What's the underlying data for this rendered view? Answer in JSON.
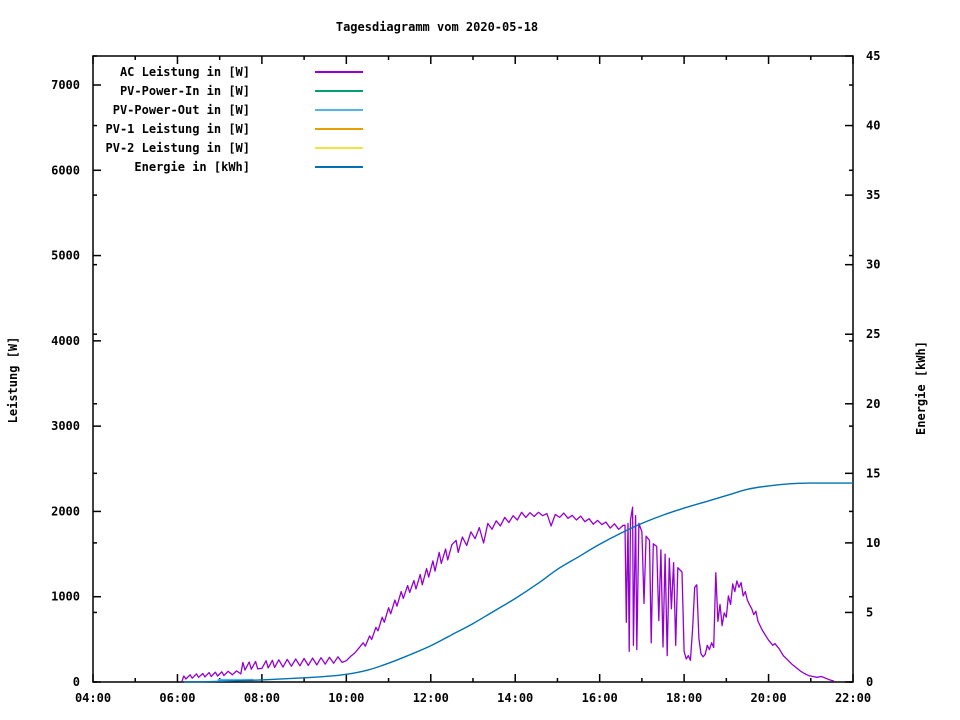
{
  "chart_data": {
    "type": "line",
    "title": "Tagesdiagramm vom 2020-05-18",
    "grid": false,
    "legend_position": "top-left-inside",
    "background_color": "#ffffff",
    "x_axis": {
      "label": "",
      "range_hours": [
        4,
        22
      ],
      "major_tick_every_hours": 2,
      "minor_tick_every_hours": 1,
      "tick_labels": [
        "04:00",
        "06:00",
        "08:00",
        "10:00",
        "12:00",
        "14:00",
        "16:00",
        "18:00",
        "20:00",
        "22:00"
      ]
    },
    "y_axis": {
      "label": "Leistung [W]",
      "range": [
        0,
        7340
      ],
      "ticks": [
        0,
        1000,
        2000,
        3000,
        4000,
        5000,
        6000,
        7000
      ],
      "tick_labels": [
        "0",
        "1000",
        "2000",
        "3000",
        "4000",
        "5000",
        "6000",
        "7000"
      ]
    },
    "y2_axis": {
      "label": "Energie [kWh]",
      "range": [
        0,
        45
      ],
      "ticks": [
        0,
        5,
        10,
        15,
        20,
        25,
        30,
        35,
        40,
        45
      ],
      "tick_labels": [
        "0",
        "5",
        "10",
        "15",
        "20",
        "25",
        "30",
        "35",
        "40",
        "45"
      ]
    },
    "series": [
      {
        "name": "AC Leistung in [W]",
        "color": "#9400d3",
        "axis": "y1",
        "smooth": false,
        "points": [
          [
            6.1,
            0
          ],
          [
            6.15,
            70
          ],
          [
            6.2,
            35
          ],
          [
            6.3,
            85
          ],
          [
            6.35,
            45
          ],
          [
            6.45,
            95
          ],
          [
            6.5,
            55
          ],
          [
            6.6,
            100
          ],
          [
            6.65,
            60
          ],
          [
            6.75,
            110
          ],
          [
            6.8,
            65
          ],
          [
            6.9,
            115
          ],
          [
            6.95,
            70
          ],
          [
            7.05,
            120
          ],
          [
            7.1,
            75
          ],
          [
            7.2,
            125
          ],
          [
            7.3,
            85
          ],
          [
            7.4,
            130
          ],
          [
            7.5,
            95
          ],
          [
            7.55,
            230
          ],
          [
            7.6,
            140
          ],
          [
            7.7,
            235
          ],
          [
            7.75,
            150
          ],
          [
            7.85,
            240
          ],
          [
            7.9,
            155
          ],
          [
            8.0,
            160
          ],
          [
            8.1,
            250
          ],
          [
            8.15,
            165
          ],
          [
            8.25,
            255
          ],
          [
            8.3,
            170
          ],
          [
            8.4,
            260
          ],
          [
            8.5,
            175
          ],
          [
            8.6,
            265
          ],
          [
            8.7,
            185
          ],
          [
            8.8,
            270
          ],
          [
            8.9,
            190
          ],
          [
            9.0,
            275
          ],
          [
            9.1,
            195
          ],
          [
            9.2,
            280
          ],
          [
            9.3,
            200
          ],
          [
            9.4,
            285
          ],
          [
            9.5,
            210
          ],
          [
            9.6,
            290
          ],
          [
            9.7,
            220
          ],
          [
            9.8,
            295
          ],
          [
            9.9,
            230
          ],
          [
            10.0,
            250
          ],
          [
            10.1,
            300
          ],
          [
            10.2,
            340
          ],
          [
            10.3,
            400
          ],
          [
            10.4,
            460
          ],
          [
            10.45,
            420
          ],
          [
            10.55,
            540
          ],
          [
            10.6,
            500
          ],
          [
            10.7,
            640
          ],
          [
            10.75,
            600
          ],
          [
            10.85,
            760
          ],
          [
            10.9,
            700
          ],
          [
            11.0,
            870
          ],
          [
            11.05,
            800
          ],
          [
            11.15,
            960
          ],
          [
            11.2,
            890
          ],
          [
            11.3,
            1060
          ],
          [
            11.35,
            980
          ],
          [
            11.45,
            1130
          ],
          [
            11.5,
            1050
          ],
          [
            11.6,
            1190
          ],
          [
            11.65,
            1090
          ],
          [
            11.75,
            1260
          ],
          [
            11.8,
            1140
          ],
          [
            11.9,
            1330
          ],
          [
            11.95,
            1230
          ],
          [
            12.05,
            1420
          ],
          [
            12.1,
            1300
          ],
          [
            12.2,
            1520
          ],
          [
            12.25,
            1390
          ],
          [
            12.35,
            1560
          ],
          [
            12.4,
            1430
          ],
          [
            12.5,
            1610
          ],
          [
            12.6,
            1660
          ],
          [
            12.65,
            1520
          ],
          [
            12.75,
            1700
          ],
          [
            12.85,
            1600
          ],
          [
            12.95,
            1760
          ],
          [
            13.05,
            1680
          ],
          [
            13.15,
            1810
          ],
          [
            13.25,
            1630
          ],
          [
            13.35,
            1860
          ],
          [
            13.45,
            1790
          ],
          [
            13.55,
            1890
          ],
          [
            13.65,
            1830
          ],
          [
            13.75,
            1930
          ],
          [
            13.85,
            1870
          ],
          [
            13.95,
            1950
          ],
          [
            14.05,
            1900
          ],
          [
            14.15,
            1990
          ],
          [
            14.25,
            1930
          ],
          [
            14.35,
            1985
          ],
          [
            14.45,
            1940
          ],
          [
            14.55,
            1990
          ],
          [
            14.65,
            1950
          ],
          [
            14.75,
            1975
          ],
          [
            14.85,
            1830
          ],
          [
            14.95,
            1965
          ],
          [
            15.05,
            1930
          ],
          [
            15.15,
            1980
          ],
          [
            15.25,
            1920
          ],
          [
            15.35,
            1955
          ],
          [
            15.45,
            1900
          ],
          [
            15.55,
            1945
          ],
          [
            15.65,
            1880
          ],
          [
            15.75,
            1915
          ],
          [
            15.85,
            1850
          ],
          [
            15.95,
            1895
          ],
          [
            16.05,
            1845
          ],
          [
            16.15,
            1875
          ],
          [
            16.25,
            1805
          ],
          [
            16.35,
            1855
          ],
          [
            16.45,
            1790
          ],
          [
            16.55,
            1835
          ],
          [
            16.6,
            1840
          ],
          [
            16.63,
            700
          ],
          [
            16.67,
            1860
          ],
          [
            16.7,
            360
          ],
          [
            16.73,
            1900
          ],
          [
            16.78,
            2050
          ],
          [
            16.8,
            430
          ],
          [
            16.85,
            1950
          ],
          [
            16.88,
            380
          ],
          [
            16.93,
            1860
          ],
          [
            17.0,
            1760
          ],
          [
            17.05,
            920
          ],
          [
            17.1,
            1710
          ],
          [
            17.18,
            1660
          ],
          [
            17.22,
            460
          ],
          [
            17.27,
            1620
          ],
          [
            17.35,
            1590
          ],
          [
            17.4,
            720
          ],
          [
            17.45,
            1550
          ],
          [
            17.5,
            410
          ],
          [
            17.55,
            1500
          ],
          [
            17.6,
            310
          ],
          [
            17.65,
            1450
          ],
          [
            17.7,
            860
          ],
          [
            17.75,
            1400
          ],
          [
            17.8,
            430
          ],
          [
            17.85,
            1340
          ],
          [
            17.95,
            1290
          ],
          [
            18.0,
            360
          ],
          [
            18.05,
            270
          ],
          [
            18.1,
            310
          ],
          [
            18.15,
            255
          ],
          [
            18.2,
            620
          ],
          [
            18.25,
            1110
          ],
          [
            18.3,
            1140
          ],
          [
            18.35,
            510
          ],
          [
            18.4,
            330
          ],
          [
            18.45,
            295
          ],
          [
            18.5,
            325
          ],
          [
            18.55,
            430
          ],
          [
            18.6,
            380
          ],
          [
            18.65,
            460
          ],
          [
            18.7,
            405
          ],
          [
            18.75,
            1280
          ],
          [
            18.8,
            710
          ],
          [
            18.85,
            910
          ],
          [
            18.9,
            660
          ],
          [
            18.95,
            810
          ],
          [
            19.0,
            760
          ],
          [
            19.05,
            1010
          ],
          [
            19.1,
            910
          ],
          [
            19.15,
            1150
          ],
          [
            19.2,
            1060
          ],
          [
            19.25,
            1185
          ],
          [
            19.3,
            1110
          ],
          [
            19.35,
            1165
          ],
          [
            19.4,
            1010
          ],
          [
            19.45,
            1060
          ],
          [
            19.5,
            960
          ],
          [
            19.55,
            905
          ],
          [
            19.6,
            860
          ],
          [
            19.65,
            790
          ],
          [
            19.7,
            830
          ],
          [
            19.75,
            710
          ],
          [
            19.8,
            660
          ],
          [
            19.85,
            610
          ],
          [
            19.9,
            570
          ],
          [
            19.95,
            530
          ],
          [
            20.0,
            490
          ],
          [
            20.1,
            430
          ],
          [
            20.15,
            450
          ],
          [
            20.25,
            390
          ],
          [
            20.35,
            310
          ],
          [
            20.45,
            260
          ],
          [
            20.55,
            210
          ],
          [
            20.65,
            170
          ],
          [
            20.75,
            130
          ],
          [
            20.85,
            100
          ],
          [
            20.95,
            75
          ],
          [
            21.05,
            65
          ],
          [
            21.15,
            55
          ],
          [
            21.25,
            65
          ],
          [
            21.35,
            45
          ],
          [
            21.45,
            25
          ],
          [
            21.55,
            10
          ]
        ]
      },
      {
        "name": "PV-Power-In in [W]",
        "color": "#009e73",
        "axis": "y1",
        "smooth": false,
        "points": []
      },
      {
        "name": "PV-Power-Out in [W]",
        "color": "#56b4e9",
        "axis": "y1",
        "smooth": false,
        "points": [
          [
            6.95,
            25
          ],
          [
            7.8,
            25
          ]
        ]
      },
      {
        "name": "PV-1 Leistung in [W]",
        "color": "#e69f00",
        "axis": "y1",
        "smooth": false,
        "points": []
      },
      {
        "name": "PV-2 Leistung in [W]",
        "color": "#f0e442",
        "axis": "y1",
        "smooth": false,
        "points": []
      },
      {
        "name": "Energie in [kWh]",
        "color": "#0072b2",
        "axis": "y2",
        "smooth": true,
        "points": [
          [
            6.15,
            0
          ],
          [
            7,
            0.05
          ],
          [
            8,
            0.15
          ],
          [
            9,
            0.3
          ],
          [
            9.5,
            0.4
          ],
          [
            10,
            0.55
          ],
          [
            10.5,
            0.85
          ],
          [
            11,
            1.35
          ],
          [
            11.5,
            1.95
          ],
          [
            12,
            2.6
          ],
          [
            12.5,
            3.4
          ],
          [
            13,
            4.2
          ],
          [
            13.5,
            5.1
          ],
          [
            14,
            6.0
          ],
          [
            14.5,
            7.0
          ],
          [
            15,
            8.1
          ],
          [
            15.5,
            9.0
          ],
          [
            16,
            9.9
          ],
          [
            16.5,
            10.7
          ],
          [
            17,
            11.4
          ],
          [
            17.5,
            12.0
          ],
          [
            18,
            12.5
          ],
          [
            18.5,
            12.95
          ],
          [
            19,
            13.4
          ],
          [
            19.5,
            13.85
          ],
          [
            20,
            14.1
          ],
          [
            20.5,
            14.25
          ],
          [
            21,
            14.3
          ],
          [
            22,
            14.3
          ]
        ]
      }
    ]
  }
}
